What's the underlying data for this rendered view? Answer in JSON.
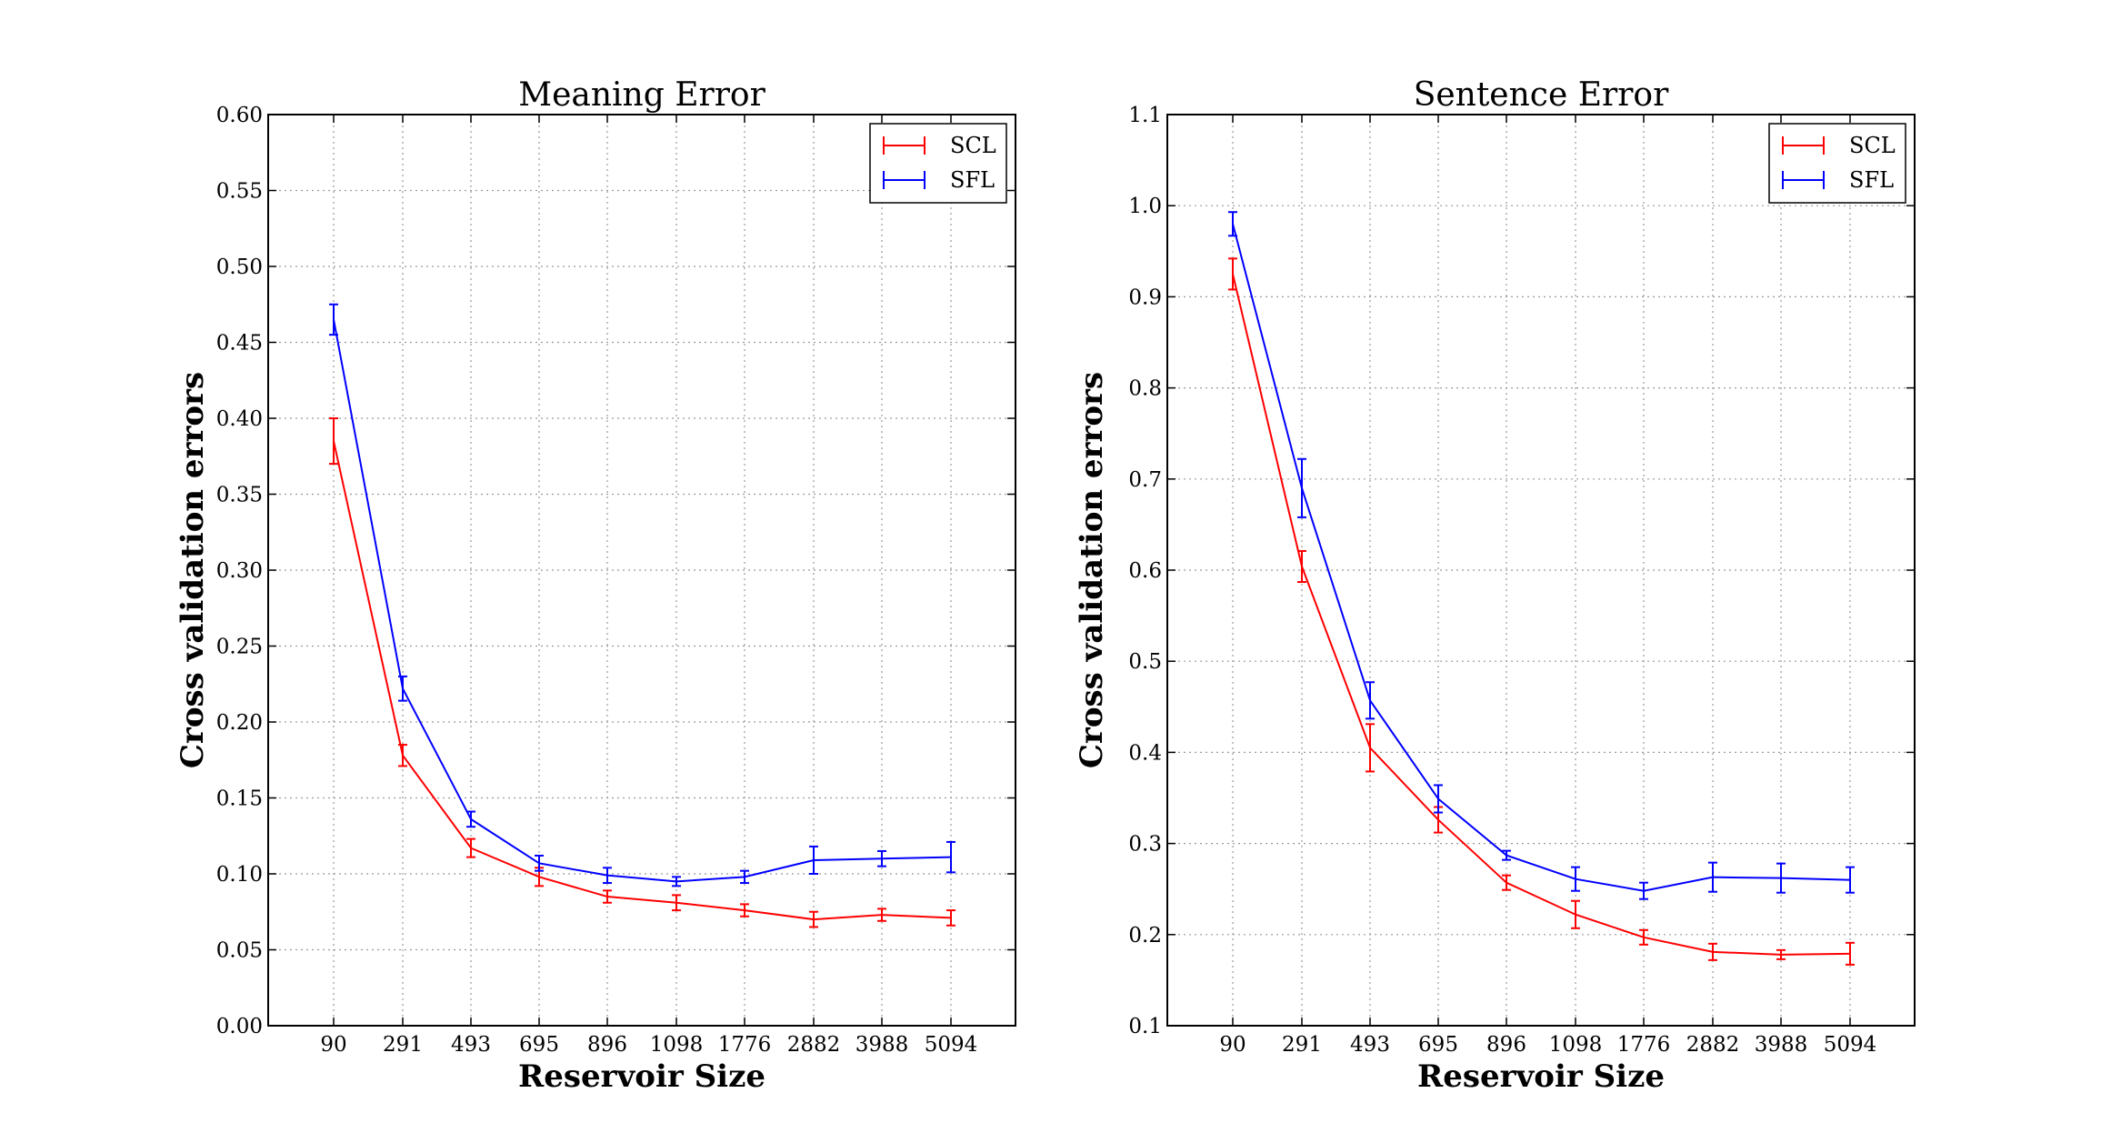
{
  "chart_data": [
    {
      "type": "line",
      "title": "Meaning Error",
      "xlabel": "Reservoir Size",
      "ylabel": "Cross validation errors",
      "categories": [
        "90",
        "291",
        "493",
        "695",
        "896",
        "1098",
        "1776",
        "2882",
        "3988",
        "5094"
      ],
      "ylim": [
        0.0,
        0.6
      ],
      "yticks": [
        "0.00",
        "0.05",
        "0.10",
        "0.15",
        "0.20",
        "0.25",
        "0.30",
        "0.35",
        "0.40",
        "0.45",
        "0.50",
        "0.55",
        "0.60"
      ],
      "grid": true,
      "legend_position": "top-right",
      "series": [
        {
          "name": "SCL",
          "color": "#ff0000",
          "values": [
            0.385,
            0.178,
            0.117,
            0.098,
            0.085,
            0.081,
            0.076,
            0.07,
            0.073,
            0.071
          ],
          "errors": [
            0.015,
            0.007,
            0.006,
            0.006,
            0.004,
            0.005,
            0.004,
            0.005,
            0.004,
            0.005
          ]
        },
        {
          "name": "SFL",
          "color": "#0000ff",
          "values": [
            0.465,
            0.222,
            0.136,
            0.107,
            0.099,
            0.095,
            0.098,
            0.109,
            0.11,
            0.111
          ],
          "errors": [
            0.01,
            0.008,
            0.005,
            0.005,
            0.005,
            0.003,
            0.004,
            0.009,
            0.005,
            0.01
          ]
        }
      ]
    },
    {
      "type": "line",
      "title": "Sentence Error",
      "xlabel": "Reservoir Size",
      "ylabel": "Cross validation errors",
      "categories": [
        "90",
        "291",
        "493",
        "695",
        "896",
        "1098",
        "1776",
        "2882",
        "3988",
        "5094"
      ],
      "ylim": [
        0.1,
        1.1
      ],
      "yticks": [
        "0.1",
        "0.2",
        "0.3",
        "0.4",
        "0.5",
        "0.6",
        "0.7",
        "0.8",
        "0.9",
        "1.0",
        "1.1"
      ],
      "grid": true,
      "legend_position": "top-right",
      "series": [
        {
          "name": "SCL",
          "color": "#ff0000",
          "values": [
            0.925,
            0.604,
            0.405,
            0.326,
            0.257,
            0.222,
            0.197,
            0.181,
            0.178,
            0.179
          ],
          "errors": [
            0.017,
            0.017,
            0.026,
            0.014,
            0.008,
            0.015,
            0.008,
            0.009,
            0.005,
            0.012
          ]
        },
        {
          "name": "SFL",
          "color": "#0000ff",
          "values": [
            0.98,
            0.69,
            0.457,
            0.349,
            0.287,
            0.261,
            0.248,
            0.263,
            0.262,
            0.26
          ],
          "errors": [
            0.013,
            0.032,
            0.02,
            0.015,
            0.005,
            0.013,
            0.009,
            0.016,
            0.016,
            0.014
          ]
        }
      ]
    }
  ]
}
